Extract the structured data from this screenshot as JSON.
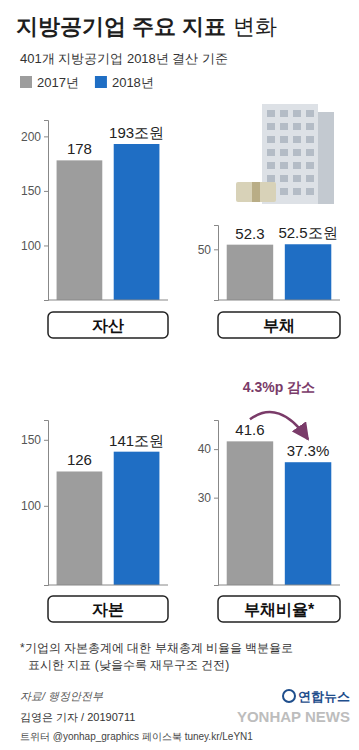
{
  "header": {
    "title": "지방공기업 주요 지표",
    "title_light": "변화",
    "subtitle": "401개 지방공기업 2018년 결산 기준"
  },
  "key": {
    "entries": [
      {
        "label": "2017년",
        "color": "#9d9d9d"
      },
      {
        "label": "2018년",
        "color": "#1f6ec4"
      }
    ]
  },
  "chart_data": [
    {
      "type": "bar",
      "title": "자산",
      "categories": [
        null,
        null
      ],
      "values": [
        178,
        193
      ],
      "value_labels": [
        "178",
        "193조원"
      ],
      "colors": [
        "#9d9d9d",
        "#1f6ec4"
      ],
      "ylim": [
        50,
        215
      ],
      "yticks": [
        100,
        150,
        200
      ],
      "grid": false,
      "data_labels": true,
      "tick_labels": "y"
    },
    {
      "type": "bar",
      "title": "부채",
      "categories": [
        null,
        null
      ],
      "values": [
        52.3,
        52.5
      ],
      "value_labels": [
        "52.3",
        "52.5조원"
      ],
      "colors": [
        "#9d9d9d",
        "#1f6ec4"
      ],
      "ylim": [
        25,
        62
      ],
      "yticks": [
        50
      ],
      "grid": false,
      "data_labels": true,
      "tick_labels": "y"
    },
    {
      "type": "bar",
      "title": "자본",
      "categories": [
        null,
        null
      ],
      "values": [
        126,
        141
      ],
      "value_labels": [
        "126",
        "141조원"
      ],
      "colors": [
        "#9d9d9d",
        "#1f6ec4"
      ],
      "ylim": [
        40,
        165
      ],
      "yticks": [
        100,
        150
      ],
      "grid": false,
      "data_labels": true,
      "tick_labels": "y"
    },
    {
      "type": "bar",
      "title": "부채비율*",
      "categories": [
        null,
        null
      ],
      "values": [
        41.6,
        37.3
      ],
      "value_labels": [
        "41.6",
        "37.3%"
      ],
      "colors": [
        "#9d9d9d",
        "#1f6ec4"
      ],
      "ylim": [
        12,
        46
      ],
      "yticks": [
        30,
        40
      ],
      "grid": false,
      "data_labels": true,
      "tick_labels": "y",
      "annotation": "4.3%p 감소"
    }
  ],
  "footer": {
    "footnote": [
      "*기업의 자본총계에 대한 부채총계 비율을 백분율로",
      "표시한 지표 (낮을수록 재무구조 건전)"
    ],
    "source": "자료/ 행정안전부",
    "logo": "연합뉴스",
    "credit": "김영은 기자 / 20190711",
    "social": "트위터 @yonhap_graphics 페이스북 tuney.kr/LeYN1",
    "watermark": "YONHAP NEWS"
  }
}
